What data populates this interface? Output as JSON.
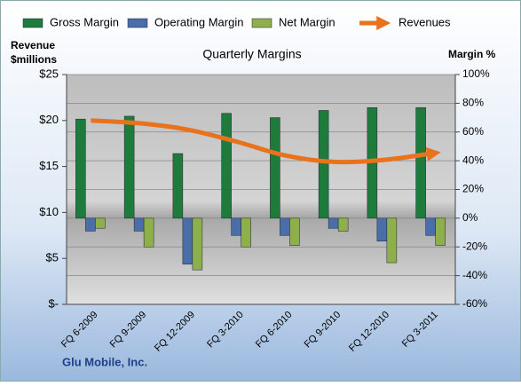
{
  "chart_data": {
    "type": "bar",
    "title": "Quarterly Margins",
    "ylabel_lines": [
      "Revenue",
      "$millions"
    ],
    "y2label": "Margin %",
    "footer": "Glu Mobile, Inc.",
    "categories": [
      "FQ 6-2009",
      "FQ 9-2009",
      "FQ 12-2009",
      "FQ 3-2010",
      "FQ 6-2010",
      "FQ 9-2010",
      "FQ 12-2010",
      "FQ 3-2011"
    ],
    "series": [
      {
        "name": "Gross Margin",
        "color": "#1e7b3c",
        "axis": "y2",
        "type": "bar",
        "values": [
          69,
          71,
          45,
          73,
          70,
          75,
          77,
          77
        ]
      },
      {
        "name": "Operating Margin",
        "color": "#4a6fa8",
        "axis": "y2",
        "type": "bar",
        "values": [
          -9,
          -9,
          -32,
          -12,
          -12,
          -7,
          -16,
          -12
        ]
      },
      {
        "name": "Net Margin",
        "color": "#8db04a",
        "axis": "y2",
        "type": "bar",
        "values": [
          -7,
          -20,
          -36,
          -20,
          -19,
          -9,
          -31,
          -19
        ]
      },
      {
        "name": "Revenues",
        "color": "#e8731c",
        "axis": "y",
        "type": "line",
        "values": [
          20.0,
          19.7,
          19.0,
          17.7,
          16.2,
          15.5,
          15.7,
          16.4
        ]
      }
    ],
    "ylim": [
      0,
      25
    ],
    "yticks": [
      {
        "value": 0,
        "label": "$-"
      },
      {
        "value": 5,
        "label": "$5"
      },
      {
        "value": 10,
        "label": "$10"
      },
      {
        "value": 15,
        "label": "$15"
      },
      {
        "value": 20,
        "label": "$20"
      },
      {
        "value": 25,
        "label": "$25"
      }
    ],
    "y2lim": [
      -60,
      100
    ],
    "y2ticks": [
      {
        "value": -60,
        "label": "-60%"
      },
      {
        "value": -40,
        "label": "-40%"
      },
      {
        "value": -20,
        "label": "-20%"
      },
      {
        "value": 0,
        "label": "0%"
      },
      {
        "value": 20,
        "label": "20%"
      },
      {
        "value": 40,
        "label": "40%"
      },
      {
        "value": 60,
        "label": "60%"
      },
      {
        "value": 80,
        "label": "80%"
      },
      {
        "value": 100,
        "label": "100%"
      }
    ],
    "grid": true
  }
}
